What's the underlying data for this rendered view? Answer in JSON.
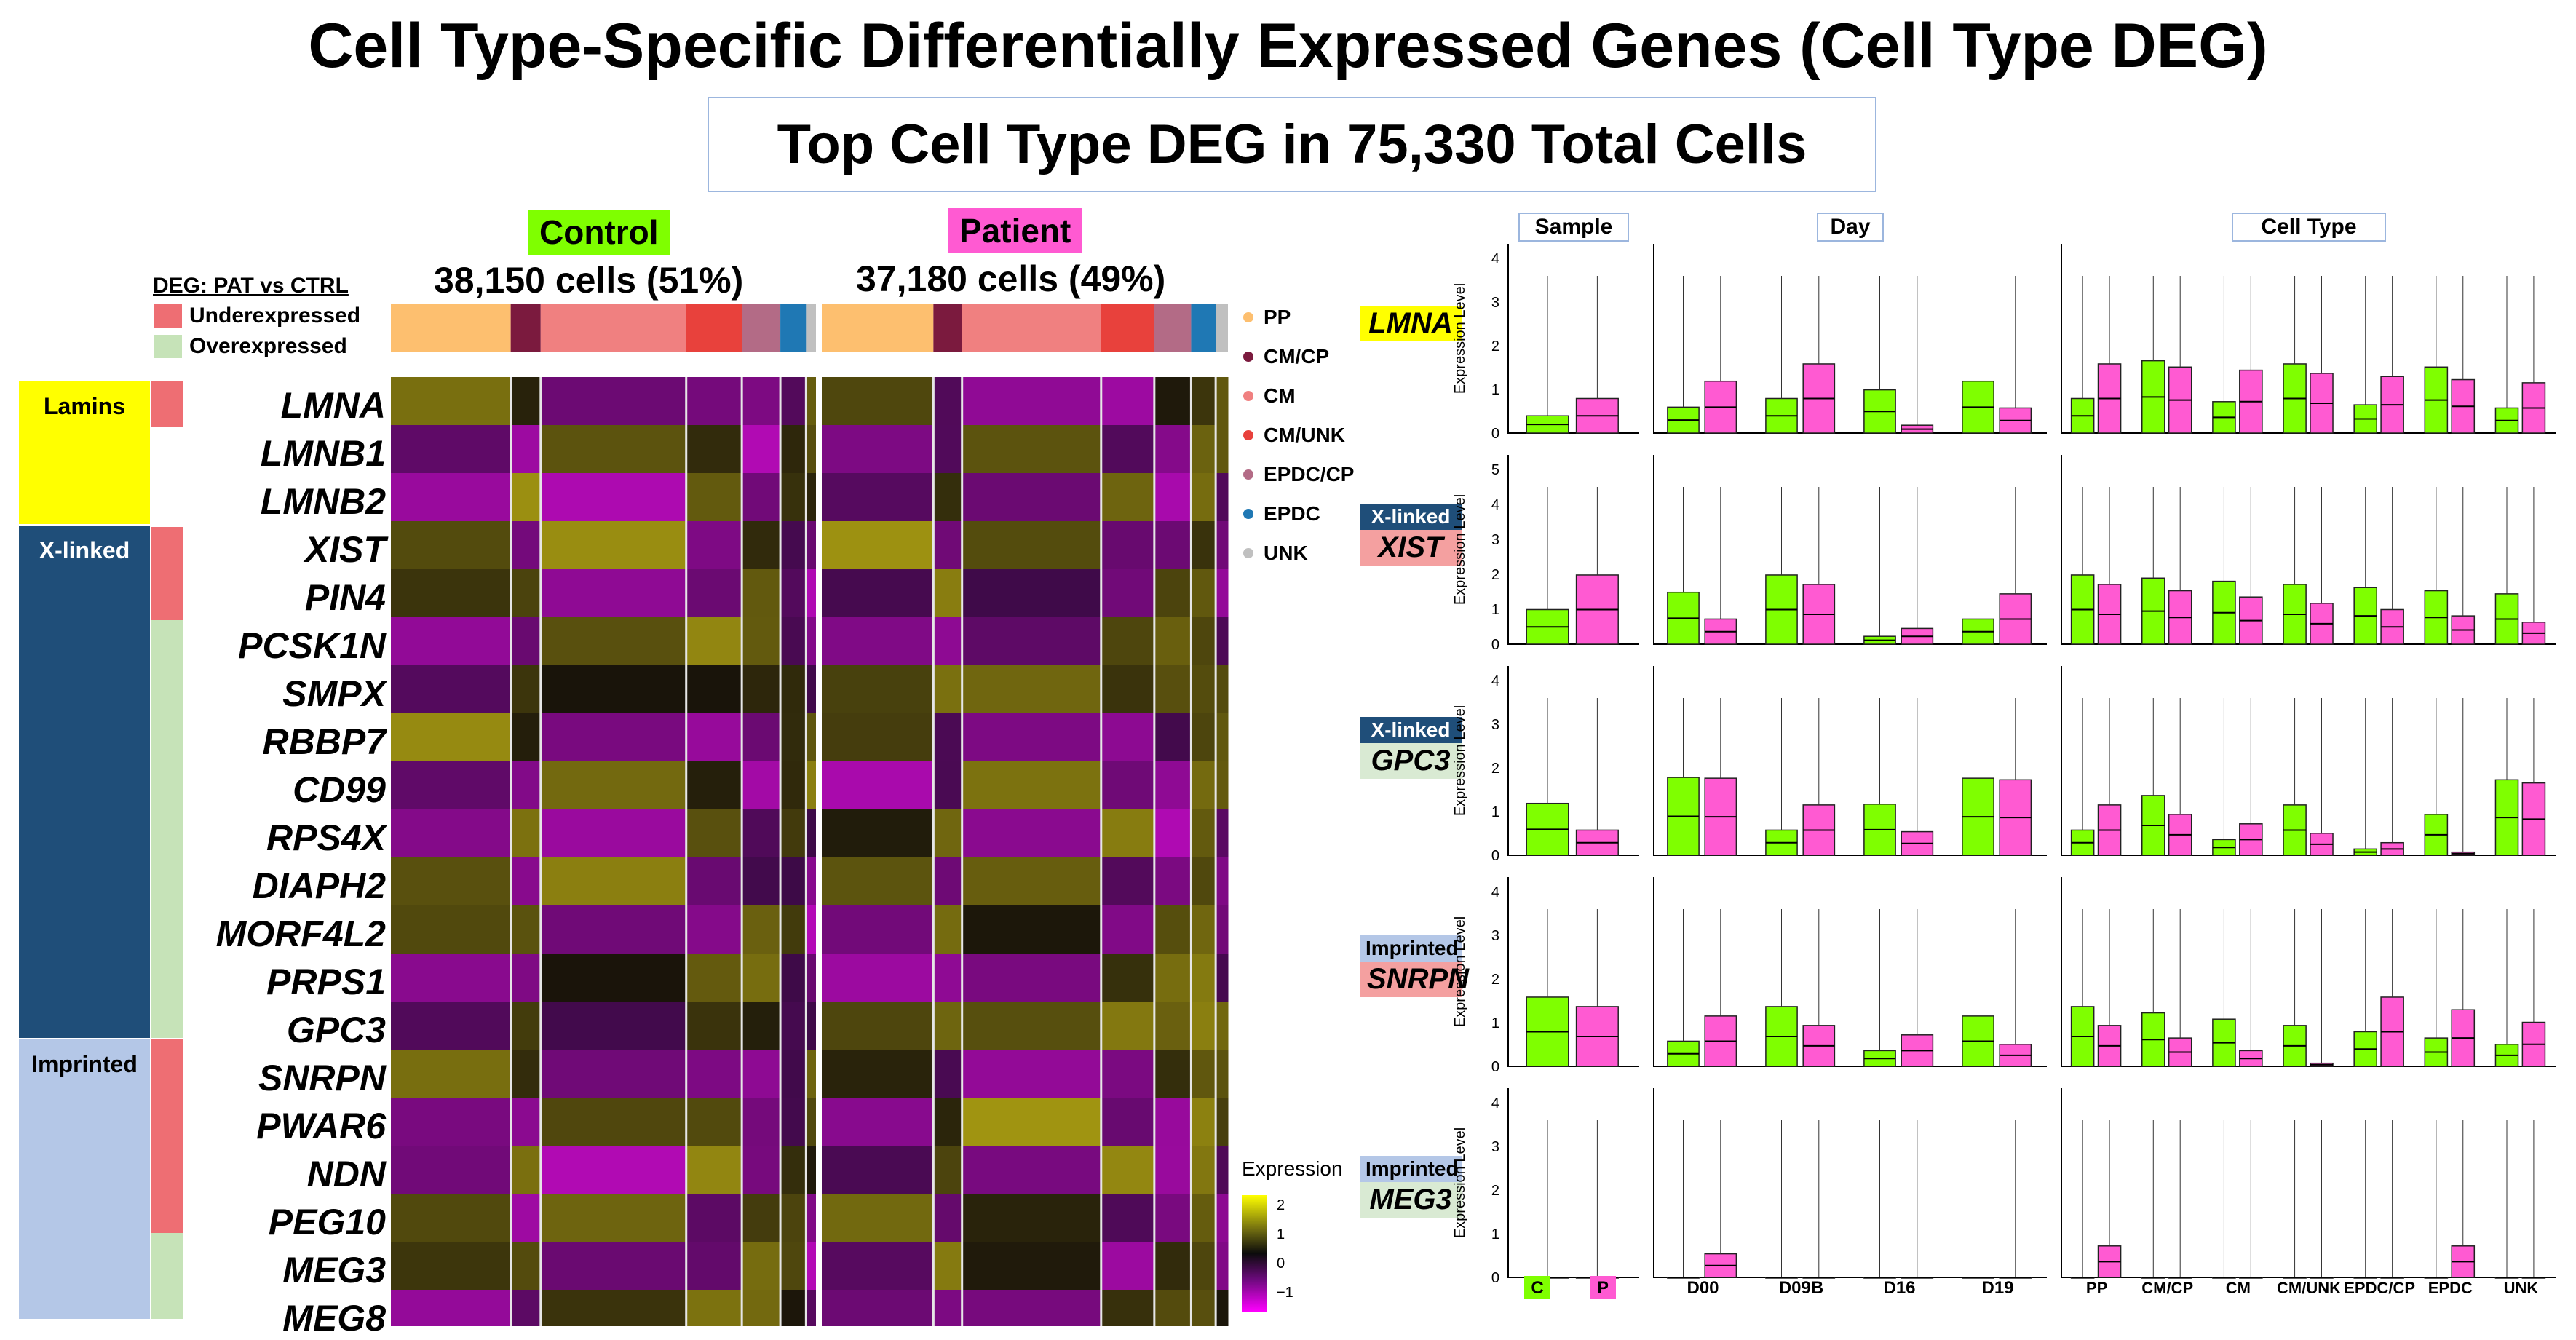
{
  "title": "Cell Type-Specific Differentially Expressed Genes (Cell Type DEG)",
  "subtitle": "Top Cell Type DEG in 75,330 Total Cells",
  "groups": [
    {
      "label": "Control",
      "cells": "38,150 cells (51%)",
      "color": "#7fff00"
    },
    {
      "label": "Patient",
      "cells": "37,180 cells (49%)",
      "color": "#ff5ad2"
    }
  ],
  "deg_legend": {
    "title": "DEG: PAT vs CTRL",
    "items": [
      {
        "label": "Underexpressed",
        "color": "#ee6e73"
      },
      {
        "label": "Overexpressed",
        "color": "#c6e3b8"
      }
    ]
  },
  "categories": [
    {
      "label": "Lamins",
      "color": "#ffff00",
      "text_color": "#000000"
    },
    {
      "label": "X-linked",
      "color": "#1f4e79",
      "text_color": "#ffffff"
    },
    {
      "label": "Imprinted",
      "color": "#b4c7e7",
      "text_color": "#000000"
    }
  ],
  "genes": [
    "LMNA",
    "LMNB1",
    "LMNB2",
    "XIST",
    "PIN4",
    "PCSK1N",
    "SMPX",
    "RBBP7",
    "CD99",
    "RPS4X",
    "DIAPH2",
    "MORF4L2",
    "PRPS1",
    "GPC3",
    "SNRPN",
    "PWAR6",
    "NDN",
    "PEG10",
    "MEG3",
    "MEG8"
  ],
  "cell_type_legend": [
    {
      "label": "PP",
      "color": "#fdbf6f"
    },
    {
      "label": "CM/CP",
      "color": "#7b1a3e"
    },
    {
      "label": "CM",
      "color": "#f08080"
    },
    {
      "label": "CM/UNK",
      "color": "#e8413c"
    },
    {
      "label": "EPDC/CP",
      "color": "#b36b86"
    },
    {
      "label": "EPDC",
      "color": "#1f78b4"
    },
    {
      "label": "UNK",
      "color": "#c0c0c0"
    }
  ],
  "expression_legend": {
    "title": "Expression",
    "ticks": [
      "2",
      "1",
      "0",
      "−1"
    ]
  },
  "violin": {
    "panel_titles": [
      "Sample",
      "Day",
      "Cell Type"
    ],
    "ylabel": "Expression Level",
    "rows": [
      {
        "tag": "",
        "gene": "LMNA",
        "tag_color": "",
        "gene_color": "#ffff00",
        "ymax": 4,
        "yticks": [
          "0",
          "1",
          "2",
          "3",
          "4"
        ]
      },
      {
        "tag": "X-linked",
        "gene": "XIST",
        "tag_color": "#1f4e79",
        "gene_color": "#f4a0a0",
        "ymax": 5,
        "yticks": [
          "0",
          "1",
          "2",
          "3",
          "4",
          "5"
        ]
      },
      {
        "tag": "X-linked",
        "gene": "GPC3",
        "tag_color": "#1f4e79",
        "gene_color": "#d9ead3",
        "ymax": 4,
        "yticks": [
          "0",
          "1",
          "2",
          "3",
          "4"
        ]
      },
      {
        "tag": "Imprinted",
        "gene": "SNRPN",
        "tag_color": "#b4c7e7",
        "gene_color": "#f4a0a0",
        "ymax": 4,
        "yticks": [
          "0",
          "1",
          "2",
          "3",
          "4"
        ]
      },
      {
        "tag": "Imprinted",
        "gene": "MEG3",
        "tag_color": "#b4c7e7",
        "gene_color": "#d9ead3",
        "ymax": 4,
        "yticks": [
          "0",
          "1",
          "2",
          "3",
          "4"
        ]
      }
    ],
    "sample_labels": [
      "C",
      "P"
    ],
    "day_labels": [
      "D00",
      "D09B",
      "D16",
      "D19"
    ],
    "celltype_labels": [
      "PP",
      "CM/CP",
      "CM",
      "CM/UNK",
      "EPDC/CP",
      "EPDC",
      "UNK"
    ]
  }
}
